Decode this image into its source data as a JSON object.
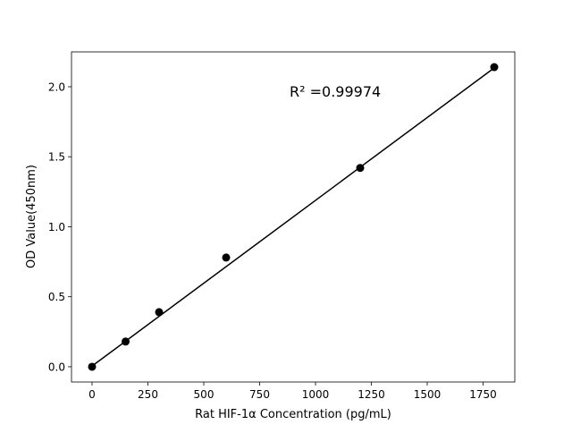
{
  "chart_data": {
    "type": "scatter",
    "title": "",
    "xlabel": "Rat HIF-1α Concentration (pg/mL)",
    "ylabel": "OD Value(450nm)",
    "xlim": [
      -92,
      1892
    ],
    "ylim": [
      -0.109,
      2.249
    ],
    "xticks": [
      0,
      250,
      500,
      750,
      1000,
      1250,
      1500,
      1750
    ],
    "xtick_labels": [
      "0",
      "250",
      "500",
      "750",
      "1000",
      "1250",
      "1500",
      "1750"
    ],
    "yticks": [
      0.0,
      0.5,
      1.0,
      1.5,
      2.0
    ],
    "ytick_labels": [
      "0.0",
      "0.5",
      "1.0",
      "1.5",
      "2.0"
    ],
    "grid": false,
    "points": {
      "x": [
        0,
        150,
        300,
        600,
        1200,
        1800
      ],
      "y": [
        0.0,
        0.18,
        0.39,
        0.78,
        1.42,
        2.14
      ],
      "color": "#000000"
    },
    "fit_line": {
      "x": [
        0,
        1800
      ],
      "y": [
        0.005,
        2.135
      ],
      "color": "#000000"
    },
    "annotation": {
      "text": "R² =0.99974",
      "x": 900,
      "y": 1.93
    }
  }
}
